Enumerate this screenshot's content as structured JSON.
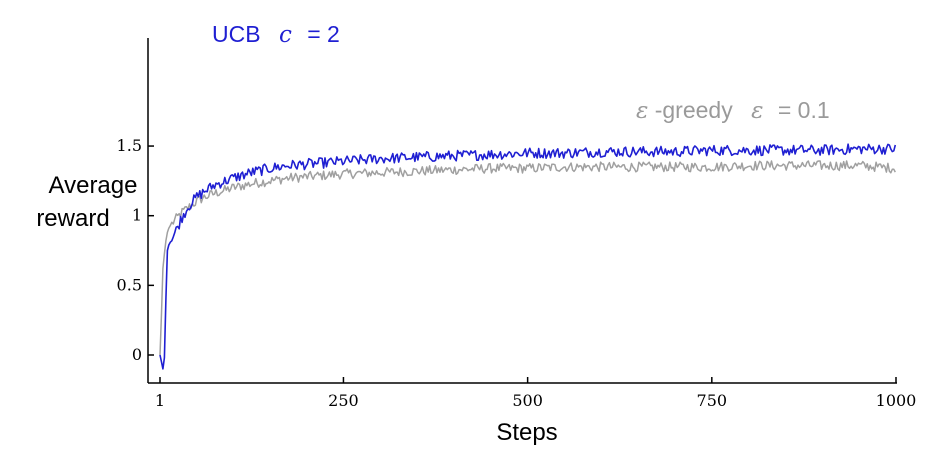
{
  "chart_data": {
    "type": "line",
    "title": "",
    "xlabel": "Steps",
    "ylabel_lines": [
      "Average",
      "reward"
    ],
    "xlim": [
      1,
      1000
    ],
    "ylim": [
      -0.1,
      1.55
    ],
    "xticks": [
      1,
      250,
      500,
      750,
      1000
    ],
    "xtick_labels": [
      "1",
      "250",
      "500",
      "750",
      "1000"
    ],
    "yticks": [
      0,
      0.5,
      1,
      1.5
    ],
    "ytick_labels": [
      "0",
      "0.5",
      "1",
      "1.5"
    ],
    "grid": false,
    "legend_placement": "inline labels near curves (top-left and top-right)",
    "series": [
      {
        "name": "ε-greedy ε = 0.1",
        "label_parts": {
          "sym1": "ε",
          "dash_text": "-greedy",
          "sym2": "ε",
          "rest": "= 0.1"
        },
        "color": "#a0a0a0",
        "noise": 0.022,
        "x": [
          1,
          3,
          5,
          8,
          10,
          12,
          15,
          20,
          25,
          30,
          40,
          50,
          60,
          75,
          100,
          125,
          150,
          175,
          200,
          250,
          300,
          350,
          400,
          450,
          500,
          550,
          600,
          650,
          700,
          750,
          800,
          850,
          900,
          950,
          1000
        ],
        "y": [
          0.0,
          0.3,
          0.62,
          0.78,
          0.86,
          0.9,
          0.93,
          0.96,
          0.99,
          1.02,
          1.06,
          1.1,
          1.13,
          1.16,
          1.2,
          1.23,
          1.25,
          1.27,
          1.28,
          1.3,
          1.31,
          1.32,
          1.33,
          1.34,
          1.34,
          1.35,
          1.35,
          1.35,
          1.35,
          1.35,
          1.36,
          1.36,
          1.36,
          1.36,
          1.34
        ]
      },
      {
        "name": "UCB c = 2",
        "label_parts": {
          "text": "UCB",
          "sym": "c",
          "rest": "= 2"
        },
        "color": "#1f1fd2",
        "noise": 0.024,
        "x": [
          1,
          3,
          5,
          7,
          9,
          10,
          11,
          12,
          14,
          16,
          20,
          25,
          30,
          40,
          50,
          60,
          75,
          100,
          125,
          150,
          175,
          200,
          250,
          300,
          350,
          400,
          450,
          500,
          550,
          600,
          650,
          700,
          750,
          800,
          850,
          900,
          950,
          1000
        ],
        "y": [
          0.0,
          -0.05,
          -0.1,
          -0.02,
          0.4,
          1.08,
          0.75,
          0.78,
          0.8,
          0.82,
          0.86,
          0.92,
          0.98,
          1.07,
          1.13,
          1.17,
          1.22,
          1.27,
          1.31,
          1.34,
          1.36,
          1.37,
          1.39,
          1.41,
          1.42,
          1.43,
          1.44,
          1.45,
          1.45,
          1.46,
          1.46,
          1.46,
          1.47,
          1.47,
          1.47,
          1.47,
          1.48,
          1.48
        ]
      }
    ]
  }
}
